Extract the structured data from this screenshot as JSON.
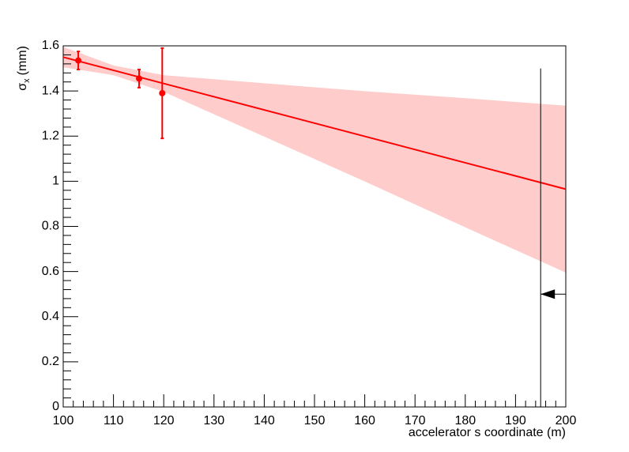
{
  "chart_data": {
    "type": "scatter",
    "x_label": "accelerator s coordinate (m)",
    "y_label": {
      "symbol": "σ",
      "subscript": "x",
      "unit": "(mm)"
    },
    "xlim": [
      100,
      200
    ],
    "xticks": [
      100,
      110,
      120,
      130,
      140,
      150,
      160,
      170,
      180,
      190,
      200
    ],
    "ylim": [
      0,
      1.6
    ],
    "yticks": [
      0,
      0.2,
      0.4,
      0.6,
      0.8,
      1,
      1.2,
      1.4,
      1.6
    ],
    "points": {
      "color": "#ff0000",
      "x": [
        103,
        115.1,
        119.7
      ],
      "values": [
        1.535,
        1.455,
        1.39
      ],
      "errors": [
        0.04,
        0.04,
        0.2
      ]
    },
    "fit": {
      "color": "#ff0000",
      "x": [
        100,
        200
      ],
      "values": [
        1.55,
        0.965
      ]
    },
    "band": {
      "color": "#ffcccc",
      "x": [
        100,
        110,
        120,
        140,
        160,
        180,
        200
      ],
      "upper": [
        1.595,
        1.513,
        1.47,
        1.434,
        1.399,
        1.368,
        1.335
      ],
      "lower": [
        1.505,
        1.47,
        1.396,
        1.198,
        0.999,
        0.796,
        0.595
      ]
    },
    "cut": {
      "x": 195,
      "y_top": 1.5,
      "arrow_y": 0.5
    }
  }
}
